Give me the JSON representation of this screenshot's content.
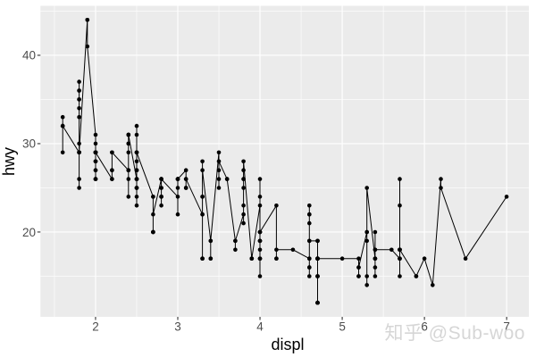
{
  "figure": {
    "background": "#ffffff",
    "panel_bg": "#ebebeb",
    "grid_color": "#ffffff",
    "tick_mark_color": "#333333",
    "axis_text_color": "#4d4d4d",
    "axis_title_color": "#000000",
    "point_color": "#000000",
    "line_color": "#000000"
  },
  "watermark": {
    "text": "知乎 @Sub-woo",
    "color": "#d6d6d6"
  },
  "chart_data": {
    "type": "scatter",
    "mark": "point+line",
    "line_rule": "connects points sorted by x (ties in data order)",
    "title": "",
    "xlabel": "displ",
    "ylabel": "hwy",
    "xlim": [
      1.33,
      7.27
    ],
    "ylim": [
      10.4,
      45.6
    ],
    "x_ticks": [
      2,
      3,
      4,
      5,
      6,
      7
    ],
    "x_tick_labels": [
      "2",
      "3",
      "4",
      "5",
      "6",
      "7"
    ],
    "y_ticks": [
      20,
      30,
      40
    ],
    "y_tick_labels": [
      "20",
      "30",
      "40"
    ],
    "x_minor_ticks": [
      1.5,
      2.5,
      3.5,
      4.5,
      5.5,
      6.5
    ],
    "y_minor_ticks": [
      15,
      25,
      35,
      45
    ],
    "grid": "major white + minor faint white on gray panel",
    "legend": "none",
    "points": [
      [
        1.8,
        29
      ],
      [
        1.8,
        29
      ],
      [
        2,
        31
      ],
      [
        2,
        30
      ],
      [
        2.8,
        26
      ],
      [
        2.8,
        26
      ],
      [
        3.1,
        27
      ],
      [
        1.8,
        26
      ],
      [
        1.8,
        25
      ],
      [
        2,
        28
      ],
      [
        2,
        27
      ],
      [
        2.8,
        25
      ],
      [
        2.8,
        25
      ],
      [
        3.1,
        25
      ],
      [
        3.1,
        25
      ],
      [
        2.8,
        24
      ],
      [
        3.1,
        25
      ],
      [
        4.2,
        23
      ],
      [
        5.3,
        20
      ],
      [
        5.3,
        15
      ],
      [
        5.3,
        20
      ],
      [
        5.7,
        17
      ],
      [
        6,
        17
      ],
      [
        5.7,
        26
      ],
      [
        5.7,
        23
      ],
      [
        6.2,
        26
      ],
      [
        6.2,
        25
      ],
      [
        7,
        24
      ],
      [
        5.3,
        19
      ],
      [
        5.3,
        14
      ],
      [
        5.7,
        15
      ],
      [
        6.5,
        17
      ],
      [
        2.4,
        27
      ],
      [
        2.4,
        30
      ],
      [
        3.1,
        26
      ],
      [
        3.5,
        29
      ],
      [
        3.6,
        26
      ],
      [
        2.4,
        24
      ],
      [
        3,
        24
      ],
      [
        3.3,
        22
      ],
      [
        3.3,
        22
      ],
      [
        3.3,
        24
      ],
      [
        3.3,
        24
      ],
      [
        3.3,
        17
      ],
      [
        3.8,
        22
      ],
      [
        3.8,
        21
      ],
      [
        3.8,
        23
      ],
      [
        4,
        23
      ],
      [
        3.7,
        19
      ],
      [
        3.7,
        18
      ],
      [
        3.9,
        17
      ],
      [
        3.9,
        17
      ],
      [
        4.7,
        19
      ],
      [
        4.7,
        19
      ],
      [
        4.7,
        12
      ],
      [
        5.2,
        17
      ],
      [
        5.2,
        15
      ],
      [
        3.9,
        17
      ],
      [
        4.7,
        17
      ],
      [
        4.7,
        12
      ],
      [
        4.7,
        17
      ],
      [
        5.2,
        16
      ],
      [
        5.7,
        18
      ],
      [
        5.9,
        15
      ],
      [
        4.7,
        17
      ],
      [
        4.7,
        17
      ],
      [
        4.7,
        12
      ],
      [
        4.7,
        17
      ],
      [
        4.7,
        12
      ],
      [
        4.7,
        17
      ],
      [
        5.2,
        15
      ],
      [
        5.2,
        16
      ],
      [
        5.7,
        17
      ],
      [
        5.9,
        15
      ],
      [
        4.6,
        17
      ],
      [
        5.4,
        17
      ],
      [
        5.4,
        18
      ],
      [
        4,
        17
      ],
      [
        4,
        19
      ],
      [
        4,
        17
      ],
      [
        4,
        19
      ],
      [
        4.6,
        19
      ],
      [
        4.2,
        17
      ],
      [
        4.2,
        17
      ],
      [
        4.6,
        16
      ],
      [
        4.6,
        16
      ],
      [
        4.6,
        17
      ],
      [
        5.4,
        15
      ],
      [
        5.4,
        17
      ],
      [
        3.8,
        26
      ],
      [
        3.8,
        25
      ],
      [
        4,
        26
      ],
      [
        4,
        24
      ],
      [
        4.6,
        21
      ],
      [
        4.6,
        22
      ],
      [
        4.6,
        23
      ],
      [
        4.6,
        22
      ],
      [
        5.4,
        20
      ],
      [
        1.6,
        33
      ],
      [
        1.6,
        32
      ],
      [
        1.6,
        32
      ],
      [
        1.6,
        29
      ],
      [
        1.6,
        32
      ],
      [
        1.8,
        34
      ],
      [
        1.8,
        36
      ],
      [
        1.8,
        36
      ],
      [
        2,
        29
      ],
      [
        2.4,
        26
      ],
      [
        2.4,
        27
      ],
      [
        2.4,
        30
      ],
      [
        2.4,
        31
      ],
      [
        2.5,
        26
      ],
      [
        2.5,
        26
      ],
      [
        3.3,
        28
      ],
      [
        2,
        26
      ],
      [
        2,
        29
      ],
      [
        2,
        28
      ],
      [
        2,
        27
      ],
      [
        2.7,
        24
      ],
      [
        2.7,
        24
      ],
      [
        3,
        22
      ],
      [
        3.7,
        19
      ],
      [
        4,
        20
      ],
      [
        4.7,
        17
      ],
      [
        4.7,
        12
      ],
      [
        4.7,
        19
      ],
      [
        5.7,
        18
      ],
      [
        6.1,
        14
      ],
      [
        4,
        15
      ],
      [
        4.2,
        18
      ],
      [
        4.4,
        18
      ],
      [
        4.6,
        15
      ],
      [
        5.4,
        17
      ],
      [
        5.4,
        16
      ],
      [
        5.4,
        18
      ],
      [
        4,
        17
      ],
      [
        4,
        19
      ],
      [
        4.6,
        19
      ],
      [
        5,
        17
      ],
      [
        2.4,
        29
      ],
      [
        2.4,
        27
      ],
      [
        2.5,
        31
      ],
      [
        2.5,
        32
      ],
      [
        3.5,
        27
      ],
      [
        3.5,
        26
      ],
      [
        3,
        26
      ],
      [
        3,
        25
      ],
      [
        3.5,
        25
      ],
      [
        3.3,
        17
      ],
      [
        3.3,
        17
      ],
      [
        4,
        20
      ],
      [
        5.6,
        18
      ],
      [
        3.1,
        26
      ],
      [
        3.8,
        26
      ],
      [
        3.8,
        27
      ],
      [
        3.8,
        28
      ],
      [
        5.3,
        25
      ],
      [
        2.5,
        25
      ],
      [
        2.5,
        24
      ],
      [
        2.5,
        27
      ],
      [
        2.5,
        25
      ],
      [
        2.5,
        26
      ],
      [
        2.5,
        23
      ],
      [
        2.2,
        26
      ],
      [
        2.2,
        26
      ],
      [
        2.5,
        26
      ],
      [
        2.5,
        26
      ],
      [
        2.5,
        25
      ],
      [
        2.5,
        27
      ],
      [
        2.5,
        25
      ],
      [
        2.5,
        27
      ],
      [
        2.7,
        20
      ],
      [
        2.7,
        20
      ],
      [
        3.4,
        19
      ],
      [
        3.4,
        17
      ],
      [
        4,
        20
      ],
      [
        4.7,
        17
      ],
      [
        2.2,
        29
      ],
      [
        2.2,
        27
      ],
      [
        2.4,
        31
      ],
      [
        2.4,
        31
      ],
      [
        3,
        26
      ],
      [
        3,
        26
      ],
      [
        3.5,
        28
      ],
      [
        2.2,
        27
      ],
      [
        2.2,
        29
      ],
      [
        2.4,
        31
      ],
      [
        2.4,
        31
      ],
      [
        3,
        26
      ],
      [
        3.3,
        27
      ],
      [
        1.8,
        30
      ],
      [
        1.8,
        33
      ],
      [
        1.8,
        35
      ],
      [
        1.8,
        37
      ],
      [
        1.8,
        35
      ],
      [
        4.7,
        15
      ],
      [
        5.7,
        18
      ],
      [
        4.7,
        15
      ],
      [
        4.7,
        17
      ],
      [
        5.7,
        17
      ],
      [
        2.7,
        20
      ],
      [
        2.7,
        20
      ],
      [
        2.7,
        22
      ],
      [
        3.4,
        17
      ],
      [
        3.4,
        19
      ],
      [
        4,
        18
      ],
      [
        4,
        20
      ],
      [
        4.7,
        15
      ],
      [
        4.7,
        15
      ],
      [
        4.7,
        17
      ],
      [
        4.7,
        17
      ],
      [
        5.7,
        18
      ],
      [
        2,
        29
      ],
      [
        2,
        26
      ],
      [
        2,
        29
      ],
      [
        2,
        29
      ],
      [
        2.8,
        24
      ],
      [
        1.9,
        44
      ],
      [
        2,
        29
      ],
      [
        2,
        26
      ],
      [
        2,
        29
      ],
      [
        2,
        29
      ],
      [
        2.5,
        29
      ],
      [
        2.5,
        29
      ],
      [
        2.8,
        23
      ],
      [
        2.8,
        24
      ],
      [
        1.9,
        44
      ],
      [
        1.9,
        41
      ],
      [
        2,
        29
      ],
      [
        2,
        26
      ],
      [
        2.5,
        28
      ],
      [
        2.5,
        29
      ],
      [
        1.8,
        29
      ],
      [
        1.8,
        29
      ],
      [
        2,
        28
      ],
      [
        2,
        29
      ],
      [
        2.8,
        26
      ],
      [
        2.8,
        26
      ],
      [
        3.6,
        26
      ]
    ]
  }
}
